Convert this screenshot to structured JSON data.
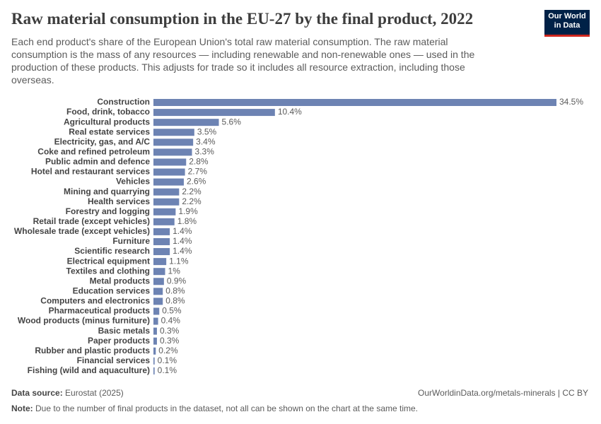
{
  "chart_data": {
    "type": "bar",
    "orientation": "horizontal",
    "title": "Raw material consumption in the EU-27 by the final product, 2022",
    "subtitle": "Each end product's share of the European Union's total raw material consumption. The raw material consumption is the mass of any resources — including renewable and non-renewable ones — used in the production of these products. This adjusts for trade so it includes all resource extraction, including those overseas.",
    "categories": [
      "Construction",
      "Food, drink, tobacco",
      "Agricultural products",
      "Real estate services",
      "Electricity, gas, and A/C",
      "Coke and refined petroleum",
      "Public admin and defence",
      "Hotel and restaurant services",
      "Vehicles",
      "Mining and quarrying",
      "Health services",
      "Forestry and logging",
      "Retail trade (except vehicles)",
      "Wholesale trade (except vehicles)",
      "Furniture",
      "Scientific research",
      "Electrical equipment",
      "Textiles and clothing",
      "Metal products",
      "Education services",
      "Computers and electronics",
      "Pharmaceutical products",
      "Wood products (minus furniture)",
      "Basic metals",
      "Paper products",
      "Rubber and plastic products",
      "Financial services",
      "Fishing (wild and aquaculture)"
    ],
    "values": [
      34.5,
      10.4,
      5.6,
      3.5,
      3.4,
      3.3,
      2.8,
      2.7,
      2.6,
      2.2,
      2.2,
      1.9,
      1.8,
      1.4,
      1.4,
      1.4,
      1.1,
      1,
      0.9,
      0.8,
      0.8,
      0.5,
      0.4,
      0.3,
      0.3,
      0.2,
      0.1,
      0.1
    ],
    "value_labels": [
      "34.5%",
      "10.4%",
      "5.6%",
      "3.5%",
      "3.4%",
      "3.3%",
      "2.8%",
      "2.7%",
      "2.6%",
      "2.2%",
      "2.2%",
      "1.9%",
      "1.8%",
      "1.4%",
      "1.4%",
      "1.4%",
      "1.1%",
      "1%",
      "0.9%",
      "0.8%",
      "0.8%",
      "0.5%",
      "0.4%",
      "0.3%",
      "0.3%",
      "0.2%",
      "0.1%",
      "0.1%"
    ],
    "color": "#6d83b3"
  },
  "logo": {
    "line1": "Our World",
    "line2": "in Data"
  },
  "footer": {
    "source_label": "Data source:",
    "source": "Eurostat (2025)",
    "link": "OurWorldinData.org/metals-minerals | CC BY",
    "note_label": "Note:",
    "note": "Due to the number of final products in the dataset, not all can be shown on the chart at the same time."
  }
}
